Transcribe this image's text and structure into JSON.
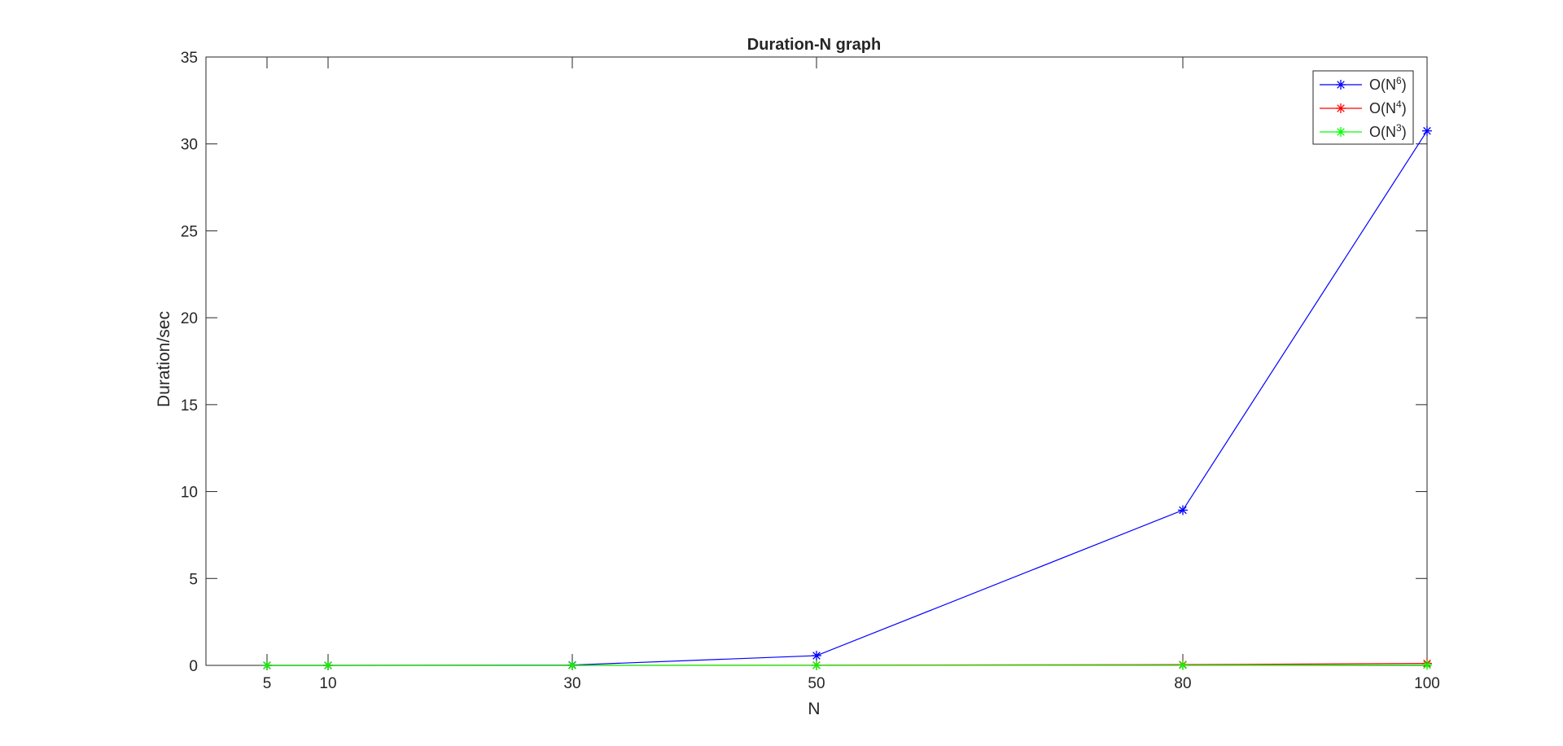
{
  "chart_data": {
    "type": "line",
    "title": "Duration-N graph",
    "xlabel": "N",
    "ylabel": "Duration/sec",
    "x": [
      5,
      10,
      30,
      50,
      80,
      100
    ],
    "xticks": [
      5,
      10,
      30,
      50,
      80,
      100
    ],
    "yticks": [
      0,
      5,
      10,
      15,
      20,
      25,
      30,
      35
    ],
    "xlim": [
      0,
      100
    ],
    "ylim": [
      0,
      35
    ],
    "grid": false,
    "legend_position": "top-right",
    "marker": "asterisk",
    "series": [
      {
        "name": "O(N",
        "sup": "6",
        "suffix": ")",
        "color": "#0000ff",
        "values": [
          0.0,
          0.0,
          0.02,
          0.56,
          8.93,
          30.75
        ]
      },
      {
        "name": "O(N",
        "sup": "4",
        "suffix": ")",
        "color": "#ff0000",
        "values": [
          0.0,
          0.0,
          0.0,
          0.01,
          0.04,
          0.11
        ]
      },
      {
        "name": "O(N",
        "sup": "3",
        "suffix": ")",
        "color": "#00ff00",
        "values": [
          0.0,
          0.0,
          0.0,
          0.0,
          0.01,
          0.02
        ]
      }
    ]
  }
}
